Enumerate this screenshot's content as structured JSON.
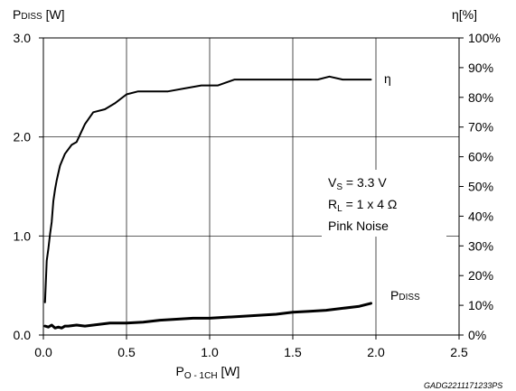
{
  "chart_data": {
    "type": "line",
    "y_left_label": {
      "main": "P",
      "sub": "DISS",
      "unit": " [W]"
    },
    "y_right_label": "η[%]",
    "x_label": {
      "main": "P",
      "sub": "O - 1CH",
      "unit": " [W]"
    },
    "xlim": [
      0,
      2.5
    ],
    "ylim_left": [
      0,
      3
    ],
    "ylim_right": [
      0,
      100
    ],
    "x_ticks": [
      "0.0",
      "0.5",
      "1.0",
      "1.5",
      "2.0",
      "2.5"
    ],
    "y_left_ticks": [
      "0.0",
      "1.0",
      "2.0",
      "3.0"
    ],
    "y_right_ticks": [
      "0%",
      "10%",
      "20%",
      "30%",
      "40%",
      "50%",
      "60%",
      "70%",
      "80%",
      "90%",
      "100%"
    ],
    "grid": true,
    "series": [
      {
        "name": "η",
        "axis": "right",
        "x": [
          0.01,
          0.02,
          0.03,
          0.04,
          0.05,
          0.06,
          0.07,
          0.08,
          0.1,
          0.13,
          0.17,
          0.2,
          0.25,
          0.3,
          0.37,
          0.43,
          0.5,
          0.57,
          0.65,
          0.75,
          0.85,
          0.95,
          1.05,
          1.15,
          1.25,
          1.35,
          1.45,
          1.55,
          1.65,
          1.72,
          1.8,
          1.9,
          1.97
        ],
        "y": [
          11,
          25,
          29,
          34,
          38,
          45,
          49,
          52,
          57,
          61,
          64,
          65,
          71,
          75,
          76,
          78,
          81,
          82,
          82,
          82,
          83,
          84,
          84,
          86,
          86,
          86,
          86,
          86,
          86,
          87,
          86,
          86,
          86
        ]
      },
      {
        "name": "PDISS",
        "axis": "left",
        "x": [
          0.01,
          0.03,
          0.05,
          0.07,
          0.09,
          0.11,
          0.13,
          0.15,
          0.2,
          0.25,
          0.3,
          0.4,
          0.5,
          0.6,
          0.7,
          0.8,
          0.9,
          1.0,
          1.1,
          1.2,
          1.3,
          1.4,
          1.5,
          1.6,
          1.7,
          1.8,
          1.9,
          1.97
        ],
        "y": [
          0.09,
          0.08,
          0.1,
          0.07,
          0.08,
          0.07,
          0.09,
          0.09,
          0.1,
          0.09,
          0.1,
          0.12,
          0.12,
          0.13,
          0.15,
          0.16,
          0.17,
          0.17,
          0.18,
          0.19,
          0.2,
          0.21,
          0.23,
          0.24,
          0.25,
          0.27,
          0.29,
          0.32
        ]
      }
    ],
    "curve_labels": [
      {
        "series": "η",
        "text": "η"
      },
      {
        "series": "PDISS",
        "main": "P",
        "sub": "DISS"
      }
    ],
    "annotations": [
      {
        "main": "V",
        "sub": "S",
        "rest": " = 3.3 V"
      },
      {
        "main": "R",
        "sub": "L",
        "rest": " = 1 x 4 Ω"
      },
      {
        "main": "Pink Noise",
        "sub": "",
        "rest": ""
      }
    ],
    "figure_code": "GADG2211171233PS"
  }
}
